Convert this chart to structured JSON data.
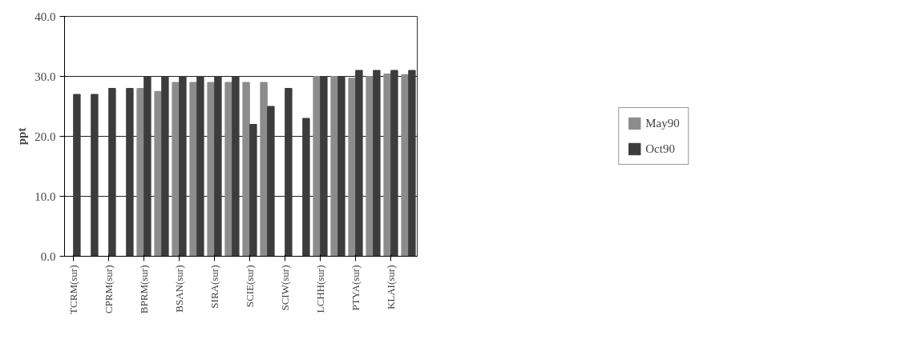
{
  "chart_data": {
    "type": "bar",
    "ylabel": "ppt",
    "categories": [
      "TCRM(sur)",
      null,
      "CPRM(sur)",
      null,
      "BPRM(sur)",
      null,
      "BSAN(sur)",
      null,
      "SIRA(sur)",
      null,
      "SCIE(sur)",
      null,
      "SCIW(sur)",
      null,
      "LCHH(sur)",
      null,
      "PTYA(sur)",
      null,
      "KLAI(sur)",
      null
    ],
    "series": [
      {
        "name": "May90",
        "color": "#8c8c8c",
        "values": [
          null,
          null,
          null,
          null,
          28,
          27.5,
          29,
          29,
          29,
          29,
          29,
          29,
          null,
          null,
          30,
          30,
          29.7,
          30,
          30.4,
          30.3
        ]
      },
      {
        "name": "Oct90",
        "color": "#3c3c3c",
        "values": [
          27,
          27,
          28,
          28,
          30,
          30,
          30,
          30,
          30,
          30,
          22,
          25,
          28,
          23,
          30,
          30,
          31,
          31,
          31,
          31
        ]
      }
    ],
    "ylim": [
      0,
      40
    ],
    "yticks": [
      {
        "value": 0,
        "label": "0.0"
      },
      {
        "value": 10,
        "label": "10.0"
      },
      {
        "value": 20,
        "label": "20.0"
      },
      {
        "value": 30,
        "label": "30.0"
      },
      {
        "value": 40,
        "label": "40.0"
      }
    ],
    "grid": "y",
    "legend": "right"
  }
}
